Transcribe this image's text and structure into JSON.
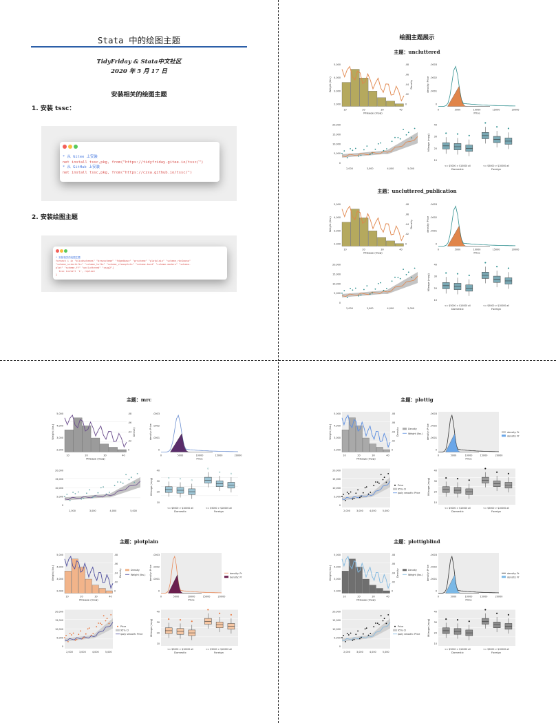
{
  "document": {
    "title": "Stata 中的绘图主题",
    "authors": "TidyFriday & Stata中文社区",
    "date": "2020 年 5 月 17 日",
    "section_heading": "安装相关的绘图主题",
    "steps": [
      {
        "label": "1.  安装 tssc："
      },
      {
        "label": "2.  安装绘图主题"
      }
    ],
    "code1": {
      "lines": [
        {
          "text": "* 从 Gitee 上安装",
          "kind": "comment"
        },
        {
          "text": "net install tssc,pkg, from(\"https://tidyfriday.gitee.io/tssc/\")",
          "kind": "code"
        },
        {
          "text": "* 从 GitHub 上安装",
          "kind": "comment"
        },
        {
          "text": "net install tssc,pkg, from(\"https://czxa.github.io/tssc/\")",
          "kind": "code"
        }
      ]
    },
    "code2": {
      "lines": [
        {
          "text": "* 安装相关的绘图主题",
          "kind": "comment"
        },
        {
          "text": "foreach i in \"blindschemes\" \"brewscheme\" \"fdgedbase\" \"grscheme\" \"plotplain\" \"scheme_rbn1mono\"",
          "kind": "code"
        },
        {
          "text": "\"scheme_scientific\" \"scheme_tufte\" \"scheme_cleanplots\" \"scheme-burd\" \"scheme-modern\" \"scheme-",
          "kind": "code"
        },
        {
          "text": "plot\" \"scheme-ff\" \"uncluttered\" \"sspg2\"{",
          "kind": "code"
        },
        {
          "text": "  tssc install `i', replace",
          "kind": "code"
        },
        {
          "text": "}",
          "kind": "code"
        }
      ]
    }
  },
  "showcase_heading": "绘图主题展示",
  "themes": [
    {
      "label": "主题：uncluttered",
      "style": "uncluttered"
    },
    {
      "label": "主题：uncluttered_publication",
      "style": "uncluttered"
    },
    {
      "label": "主题：mrc",
      "style": "mrc"
    },
    {
      "label": "主题：plotplain",
      "style": "plotplain"
    },
    {
      "label": "主题：plottig",
      "style": "plottig"
    },
    {
      "label": "主题：plottigblind",
      "style": "plottigblind"
    }
  ],
  "panel_text": {
    "hist_ylabel": "Weight (lbs.)",
    "hist_ylabel2": "Density",
    "hist_xlabel": "Mileage (mpg)",
    "hist_yticks": [
      "5,000",
      "4,000",
      "3,000",
      "2,000"
    ],
    "hist_y2ticks": [
      ".08",
      ".06",
      ".04",
      ".02",
      "0"
    ],
    "hist_xticks": [
      "10",
      "20",
      "30",
      "40"
    ],
    "kd_ylabel": "density: Price",
    "kd_xlabel": "Price",
    "kd_yticks": [
      ".0003",
      ".0002",
      ".0001",
      "0"
    ],
    "kd_xticks": [
      "0",
      "5000",
      "10000",
      "15000",
      "20000"
    ],
    "sc_yticks": [
      "20,000",
      "15,000",
      "10,000",
      "5,000",
      "0"
    ],
    "sc_xticks": [
      "2,000",
      "3,000",
      "4,000",
      "5,000"
    ],
    "bx_ylabel": "Mileage (mpg)",
    "bx_yticks": [
      "40",
      "30",
      "20",
      "10"
    ],
    "bx_groups": [
      "Domestic",
      "Foreign"
    ],
    "bx_cats": "<= $5000 > $10000   all",
    "legend_density": "Density",
    "legend_weight": "Weight (lbs.)",
    "legend_kd": "density: Price",
    "legend_price": "Price",
    "legend_ci": "95% CI",
    "legend_lpoly": "lpoly smooth: Price"
  },
  "palettes": {
    "uncluttered": {
      "bar": "#b5a95e",
      "line": "#e0854a",
      "kd": "#e0854a",
      "kdline": "#2f8f8f",
      "box": "#7aa9b5",
      "bg": "#ffffff",
      "grid": "#ffffff",
      "band": "#b5b5b5",
      "pt": "#2f8f8f"
    },
    "mrc": {
      "bar": "#9b9b9b",
      "line": "#6a4c8c",
      "kd": "#5a2d6b",
      "kdline": "#6a8ed0",
      "box": "#9ec6d6",
      "bg": "#ffffff",
      "grid": "#e9e9e9",
      "band": "#b5b5b5",
      "pt": "#6aa9a9"
    },
    "plotplain": {
      "bar": "#f2b48a",
      "line": "#4e4e9e",
      "kd": "#6b1f4e",
      "kdline": "#e88a5a",
      "box": "#f6c7a4",
      "bg": "#ececec",
      "grid": "#ffffff",
      "band": "#c8c8c8",
      "pt": "#e8743a"
    },
    "plottig": {
      "bar": "#a9a9a9",
      "line": "#5b8de0",
      "kd": "#6aa6e8",
      "kdline": "#333333",
      "box": "#9a9a9a",
      "bg": "#ececec",
      "grid": "#ffffff",
      "band": "#c8c8c8",
      "pt": "#111111"
    },
    "plottigblind": {
      "bar": "#6f6f6f",
      "line": "#80b8e0",
      "kd": "#7ab8e6",
      "kdline": "#333333",
      "box": "#8d8d8d",
      "bg": "#ececec",
      "grid": "#ffffff",
      "band": "#c8c8c8",
      "pt": "#111111"
    }
  }
}
